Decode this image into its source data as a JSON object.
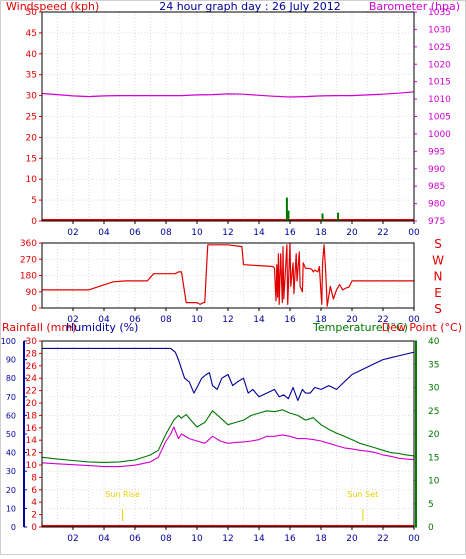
{
  "header": {
    "left_label": "Windspeed (kph)",
    "title": "24 hour graph day : 26 July 2012",
    "right_label": "Barometer (hpa)"
  },
  "colors": {
    "frame": "#000000",
    "red": "#e00000",
    "blue": "#000099",
    "magenta": "#d000d0",
    "green": "#007700",
    "grid": "#c8c8c8",
    "sun_label": "#e8d000"
  },
  "x_ticks": [
    "02",
    "04",
    "06",
    "08",
    "10",
    "12",
    "14",
    "16",
    "18",
    "20",
    "22",
    "00"
  ],
  "panel1": {
    "wind_ticks": [
      "0",
      "5",
      "10",
      "15",
      "20",
      "25",
      "30",
      "35",
      "40",
      "45",
      "50"
    ],
    "baro_ticks": [
      "975",
      "980",
      "985",
      "990",
      "995",
      "1000",
      "1005",
      "1010",
      "1015",
      "1020",
      "1025",
      "1030",
      "1035"
    ]
  },
  "panel2": {
    "dir_ticks": [
      "0",
      "90",
      "180",
      "270",
      "360"
    ],
    "compass": [
      "S",
      "E",
      "N",
      "W",
      "S"
    ]
  },
  "panel3": {
    "rain_label": "Rainfall (mm)",
    "humidity_label": "Humidity (%)",
    "temp_label": "Temperature (°C)",
    "dew_label": "Dew Point (°C)",
    "humidity_ticks": [
      "0",
      "10",
      "20",
      "30",
      "40",
      "50",
      "60",
      "70",
      "80",
      "90",
      "100"
    ],
    "rain_ticks": [
      "0",
      "2",
      "4",
      "6",
      "8",
      "10",
      "12",
      "14",
      "16",
      "18",
      "20",
      "22",
      "24",
      "26",
      "28",
      "30"
    ],
    "temp_ticks": [
      "0",
      "5",
      "10",
      "15",
      "20",
      "25",
      "30",
      "35",
      "40"
    ],
    "sunrise": "Sun Rise",
    "sunset": "Sun Set"
  },
  "chart_data": [
    {
      "type": "line",
      "x_unit": "hour",
      "xlim": [
        0,
        24
      ],
      "title": "24 hour graph day : 26 July 2012",
      "ylabel": "Windspeed (kph)",
      "ylabel_right": "Barometer (hpa)",
      "ylim": [
        0,
        50
      ],
      "ylim_right": [
        975,
        1035
      ],
      "series": [
        {
          "name": "Barometer (hpa)",
          "axis": "right",
          "x": [
            0,
            1,
            2,
            3,
            4,
            5,
            6,
            7,
            8,
            9,
            10,
            11,
            12,
            13,
            14,
            15,
            16,
            17,
            18,
            19,
            20,
            21,
            22,
            23,
            24
          ],
          "values": [
            1011.6,
            1011.3,
            1010.9,
            1010.7,
            1010.9,
            1011.0,
            1011.0,
            1011.0,
            1011.0,
            1011.0,
            1011.2,
            1011.3,
            1011.5,
            1011.4,
            1011.1,
            1010.8,
            1010.6,
            1010.7,
            1010.9,
            1011.0,
            1011.0,
            1011.2,
            1011.4,
            1011.7,
            1012.1
          ]
        },
        {
          "name": "Windspeed (kph)",
          "axis": "left",
          "style": "bars",
          "x": [
            15.8,
            15.9,
            18.1,
            19.1
          ],
          "values": [
            5.6,
            2.5,
            1.8,
            2.0
          ]
        }
      ]
    },
    {
      "type": "line",
      "x_unit": "hour",
      "xlim": [
        0,
        24
      ],
      "ylabel": "Wind direction",
      "ylim": [
        0,
        360
      ],
      "series": [
        {
          "name": "Wind direction",
          "x": [
            0,
            2.6,
            3.0,
            4.6,
            5.4,
            6.8,
            7.2,
            8.6,
            8.8,
            9.0,
            9.3,
            10.0,
            10.2,
            10.4,
            10.5,
            10.6,
            10.7,
            12.0,
            12.9,
            13.0,
            14.0,
            14.9,
            15.0,
            15.1,
            15.15,
            15.2,
            15.25,
            15.3,
            15.35,
            15.4,
            15.5,
            15.55,
            15.6,
            15.8,
            15.85,
            16.0,
            16.05,
            16.2,
            16.25,
            16.4,
            16.45,
            16.6,
            16.65,
            16.8,
            16.85,
            17.0,
            17.2,
            17.4,
            17.5,
            17.6,
            17.8,
            17.9,
            18.0,
            18.05,
            18.1,
            18.15,
            18.2,
            18.3,
            18.4,
            18.6,
            18.8,
            19.0,
            19.2,
            19.4,
            19.6,
            19.8,
            20.0,
            20.4,
            20.5,
            24
          ],
          "values": [
            100,
            100,
            100,
            145,
            150,
            150,
            190,
            190,
            200,
            200,
            30,
            30,
            20,
            30,
            30,
            200,
            350,
            350,
            340,
            240,
            235,
            230,
            220,
            40,
            240,
            60,
            300,
            20,
            160,
            300,
            30,
            340,
            50,
            350,
            20,
            360,
            120,
            250,
            80,
            300,
            150,
            310,
            120,
            90,
            250,
            220,
            220,
            215,
            200,
            210,
            200,
            230,
            80,
            20,
            250,
            300,
            350,
            200,
            10,
            120,
            50,
            100,
            130,
            100,
            110,
            115,
            150,
            150,
            150,
            150
          ]
        }
      ]
    },
    {
      "type": "line",
      "x_unit": "hour",
      "xlim": [
        0,
        24
      ],
      "ylabel": "Humidity (%) / Rainfall (mm)",
      "ylabel_right": "Temperature (°C) / Dew Point (°C)",
      "ylim": [
        0,
        100
      ],
      "ylim_right": [
        0,
        40
      ],
      "series": [
        {
          "name": "Humidity (%)",
          "axis": "left",
          "x": [
            0,
            2,
            4,
            6,
            7.5,
            8.3,
            8.6,
            8.8,
            9.0,
            9.2,
            9.5,
            9.8,
            10.0,
            10.3,
            10.6,
            10.8,
            11.0,
            11.3,
            11.6,
            12.0,
            12.3,
            12.6,
            13.0,
            13.3,
            13.6,
            14.0,
            14.5,
            15.0,
            15.3,
            15.6,
            15.9,
            16.2,
            16.5,
            16.8,
            17.0,
            17.3,
            17.6,
            18.0,
            18.5,
            19.0,
            19.5,
            20.0,
            20.5,
            21.0,
            21.5,
            22.0,
            22.5,
            23.0,
            23.5,
            24
          ],
          "values": [
            96,
            96,
            96,
            96,
            96,
            96,
            94,
            90,
            85,
            80,
            78,
            72,
            75,
            80,
            82,
            83,
            76,
            74,
            80,
            82,
            76,
            78,
            80,
            72,
            74,
            70,
            72,
            74,
            70,
            71,
            69,
            75,
            68,
            74,
            72,
            72,
            75,
            74,
            76,
            74,
            78,
            82,
            84,
            86,
            88,
            90,
            91,
            92,
            93,
            94
          ]
        },
        {
          "name": "Temperature (°C)",
          "axis": "right",
          "x": [
            0,
            1,
            2,
            3,
            4,
            5,
            6,
            7,
            7.5,
            8,
            8.5,
            8.8,
            9,
            9.3,
            9.6,
            10,
            10.5,
            11,
            11.5,
            12,
            12.5,
            13,
            13.5,
            14,
            14.5,
            15,
            15.5,
            16,
            16.5,
            17,
            17.5,
            18,
            18.5,
            19,
            19.5,
            20,
            20.5,
            21,
            21.5,
            22,
            22.5,
            23,
            23.5,
            24
          ],
          "values": [
            15.0,
            14.6,
            14.3,
            14.0,
            13.9,
            14.0,
            14.4,
            15.5,
            16.5,
            20.0,
            23.0,
            24.0,
            23.4,
            24.2,
            23.0,
            21.5,
            22.5,
            25.0,
            23.5,
            22.0,
            22.5,
            23.0,
            24.0,
            24.5,
            25.0,
            24.8,
            25.2,
            24.5,
            24.0,
            23.0,
            23.5,
            22.0,
            21.0,
            20.2,
            19.5,
            18.8,
            18.0,
            17.5,
            17.0,
            16.5,
            16.0,
            15.8,
            15.5,
            15.3
          ]
        },
        {
          "name": "Dew Point (°C)",
          "axis": "right",
          "x": [
            0,
            1,
            2,
            3,
            4,
            5,
            6,
            7,
            7.5,
            8,
            8.3,
            8.5,
            8.8,
            9,
            9.5,
            10,
            10.5,
            11,
            11.5,
            12,
            12.5,
            13,
            13.5,
            14,
            14.5,
            15,
            15.5,
            16,
            16.5,
            17,
            17.5,
            18,
            18.5,
            19,
            19.5,
            20,
            20.5,
            21,
            21.5,
            22,
            22.5,
            23,
            23.5,
            24
          ],
          "values": [
            13.8,
            13.6,
            13.4,
            13.2,
            13.0,
            13.0,
            13.3,
            14.0,
            15.0,
            18.5,
            20.0,
            21.5,
            19.0,
            20.0,
            19.0,
            18.5,
            18.0,
            19.5,
            18.5,
            18.0,
            18.2,
            18.3,
            18.5,
            18.8,
            19.5,
            19.5,
            19.8,
            19.5,
            19.0,
            19.0,
            18.8,
            18.5,
            18.0,
            17.5,
            17.0,
            16.8,
            16.5,
            16.3,
            16.0,
            15.5,
            15.2,
            14.8,
            14.6,
            14.5
          ]
        },
        {
          "name": "Rainfall (mm)",
          "axis": "left",
          "x": [
            0,
            24
          ],
          "values": [
            0,
            0
          ]
        }
      ],
      "annotations": [
        {
          "text": "Sun Rise",
          "x": 5.2
        },
        {
          "text": "Sun Set",
          "x": 20.7
        }
      ]
    }
  ]
}
